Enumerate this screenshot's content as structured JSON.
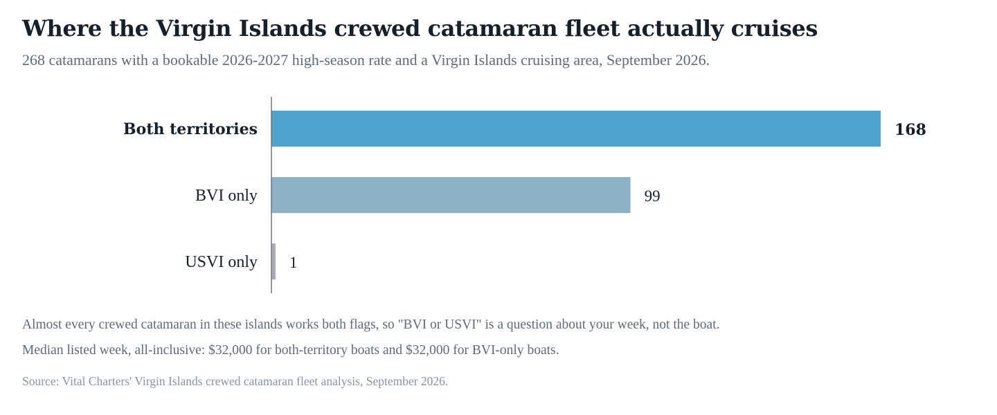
{
  "title": "Where the Virgin Islands crewed catamaran fleet actually cruises",
  "subtitle": "268 catamarans with a bookable 2026-2027 high-season rate and a Virgin Islands cruising area, September 2026.",
  "notes": [
    "Almost every crewed catamaran in these islands works both flags, so \"BVI or USVI\" is a question about your week, not the boat.",
    "Median listed week, all-inclusive: $32,000 for both-territory boats and $32,000 for BVI-only boats."
  ],
  "source": "Source: Vital Charters' Virgin Islands crewed catamaran fleet analysis, September 2026.",
  "chart_data": {
    "type": "bar",
    "orientation": "horizontal",
    "categories": [
      "Both territories",
      "BVI only",
      "USVI only"
    ],
    "values": [
      168,
      99,
      1
    ],
    "value_labels": [
      "168",
      "99",
      "1"
    ],
    "highlighted_category": "Both territories",
    "colors": [
      "#4fa3cd",
      "#8fb1c6",
      "#a7adb3"
    ],
    "xlim": [
      0,
      168
    ],
    "grid": false,
    "legend": "none"
  }
}
